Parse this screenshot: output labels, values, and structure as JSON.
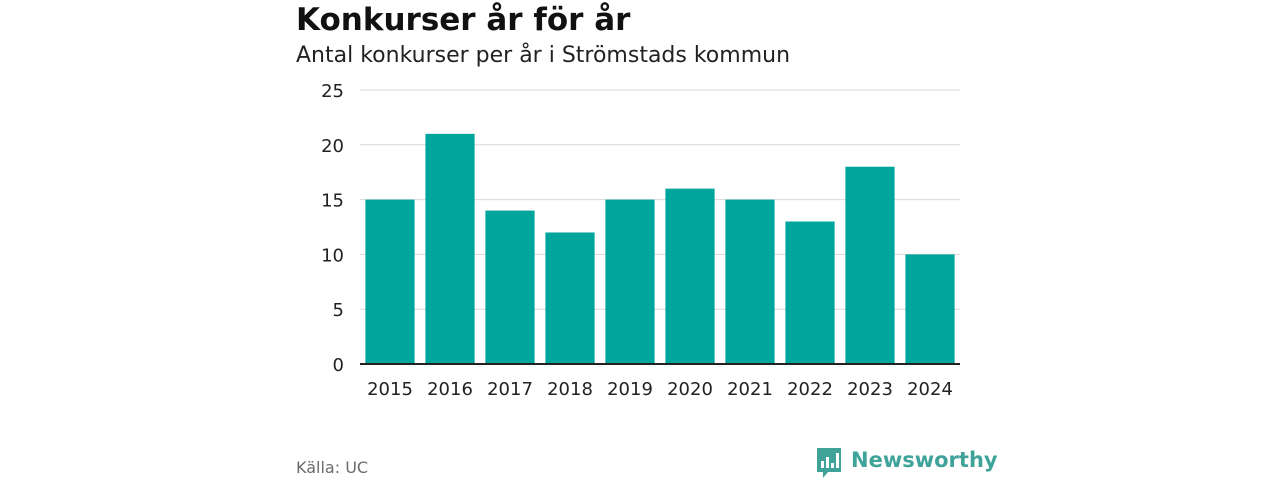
{
  "header": {
    "title": "Konkurser år för år",
    "subtitle": "Antal konkurser per år i Strömstads kommun"
  },
  "footer": {
    "source": "Källa: UC",
    "brand": "Newsworthy",
    "brand_icon": "newsworthy-logo-icon"
  },
  "colors": {
    "bar": "#00a59b",
    "grid": "#d9d9d9",
    "axis": "#222222",
    "brand": "#3fa39a"
  },
  "chart_data": {
    "type": "bar",
    "title": "Konkurser år för år",
    "subtitle": "Antal konkurser per år i Strömstads kommun",
    "xlabel": "",
    "ylabel": "",
    "categories": [
      "2015",
      "2016",
      "2017",
      "2018",
      "2019",
      "2020",
      "2021",
      "2022",
      "2023",
      "2024"
    ],
    "values": [
      15,
      21,
      14,
      12,
      15,
      16,
      15,
      13,
      18,
      10
    ],
    "ylim": [
      0,
      25
    ],
    "yticks": [
      0,
      5,
      10,
      15,
      20,
      25
    ],
    "grid": true,
    "legend": "none"
  }
}
